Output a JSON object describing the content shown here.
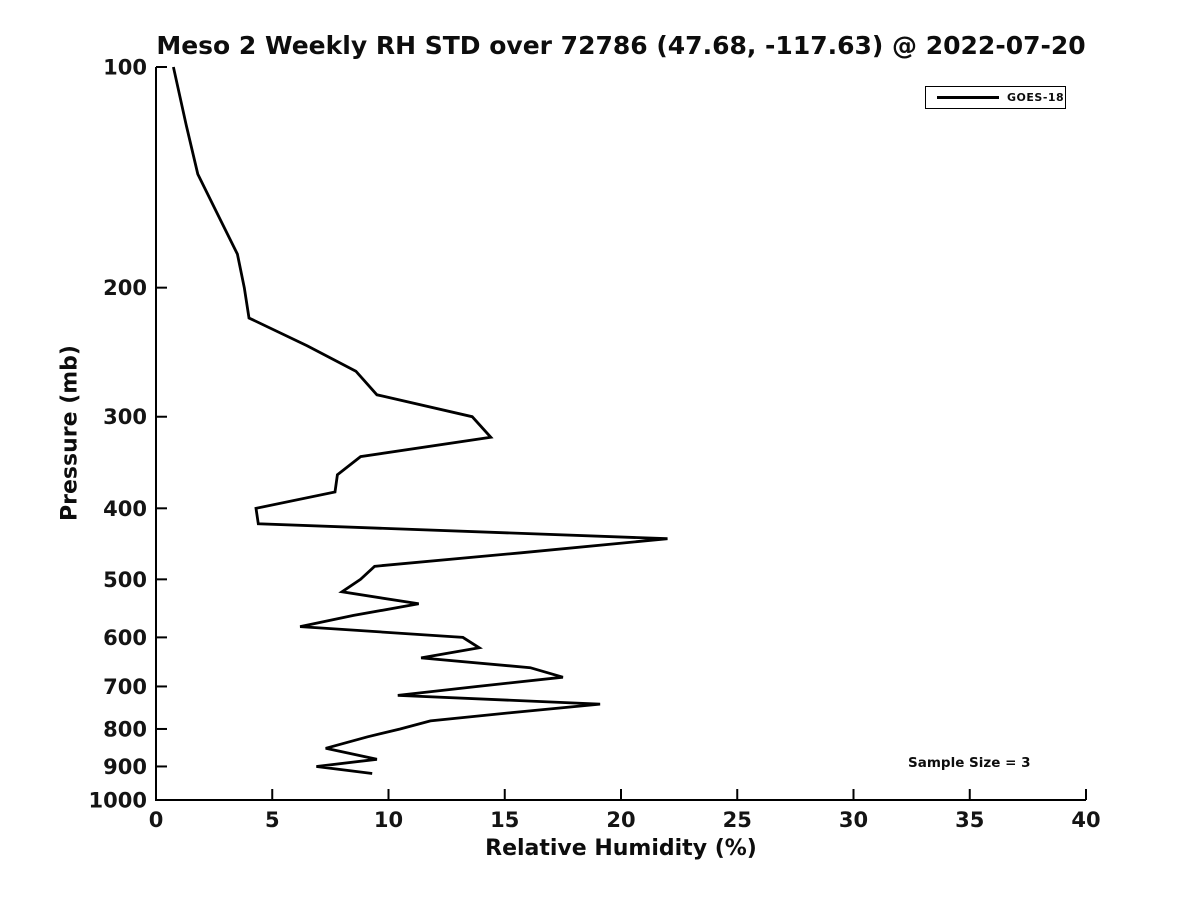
{
  "chart_data": {
    "type": "line",
    "title": "Meso 2 Weekly RH STD over 72786 (47.68, -117.63) @ 2022-07-20",
    "xlabel": "Relative Humidity (%)",
    "ylabel": "Pressure (mb)",
    "xlim": [
      0,
      40
    ],
    "ylim": [
      100,
      1000
    ],
    "y_scale": "log",
    "y_inverted": true,
    "grid": false,
    "x_ticks": [
      0,
      5,
      10,
      15,
      20,
      25,
      30,
      35,
      40
    ],
    "y_ticks": [
      100,
      200,
      300,
      400,
      500,
      600,
      700,
      800,
      900,
      1000
    ],
    "legend": {
      "position": "top-right",
      "entries": [
        {
          "label": "GOES-18",
          "color": "#000000"
        }
      ]
    },
    "annotation": "Sample Size = 3",
    "series": [
      {
        "name": "GOES-18",
        "color": "#000000",
        "line_width": 2.8,
        "points_format": [
          "pressure_mb",
          "rh_std_pct"
        ],
        "points": [
          [
            100,
            0.75
          ],
          [
            120,
            1.3
          ],
          [
            140,
            1.8
          ],
          [
            160,
            2.7
          ],
          [
            180,
            3.5
          ],
          [
            200,
            3.8
          ],
          [
            220,
            4.0
          ],
          [
            240,
            6.5
          ],
          [
            260,
            8.6
          ],
          [
            280,
            9.5
          ],
          [
            300,
            13.6
          ],
          [
            320,
            14.4
          ],
          [
            340,
            8.8
          ],
          [
            360,
            7.8
          ],
          [
            380,
            7.7
          ],
          [
            400,
            4.3
          ],
          [
            420,
            4.4
          ],
          [
            440,
            22.0
          ],
          [
            460,
            15.7
          ],
          [
            480,
            9.4
          ],
          [
            500,
            8.8
          ],
          [
            520,
            8.0
          ],
          [
            540,
            11.3
          ],
          [
            560,
            8.5
          ],
          [
            580,
            6.2
          ],
          [
            600,
            13.2
          ],
          [
            620,
            13.9
          ],
          [
            640,
            11.4
          ],
          [
            660,
            16.1
          ],
          [
            680,
            17.5
          ],
          [
            700,
            13.8
          ],
          [
            720,
            10.4
          ],
          [
            740,
            19.1
          ],
          [
            760,
            15.3
          ],
          [
            780,
            11.8
          ],
          [
            800,
            10.5
          ],
          [
            820,
            9.1
          ],
          [
            850,
            7.3
          ],
          [
            880,
            9.5
          ],
          [
            900,
            6.9
          ],
          [
            920,
            9.3
          ]
        ]
      }
    ],
    "colors": {
      "axis": "#000000",
      "text": "#0d0d0d",
      "background": "#ffffff"
    }
  }
}
